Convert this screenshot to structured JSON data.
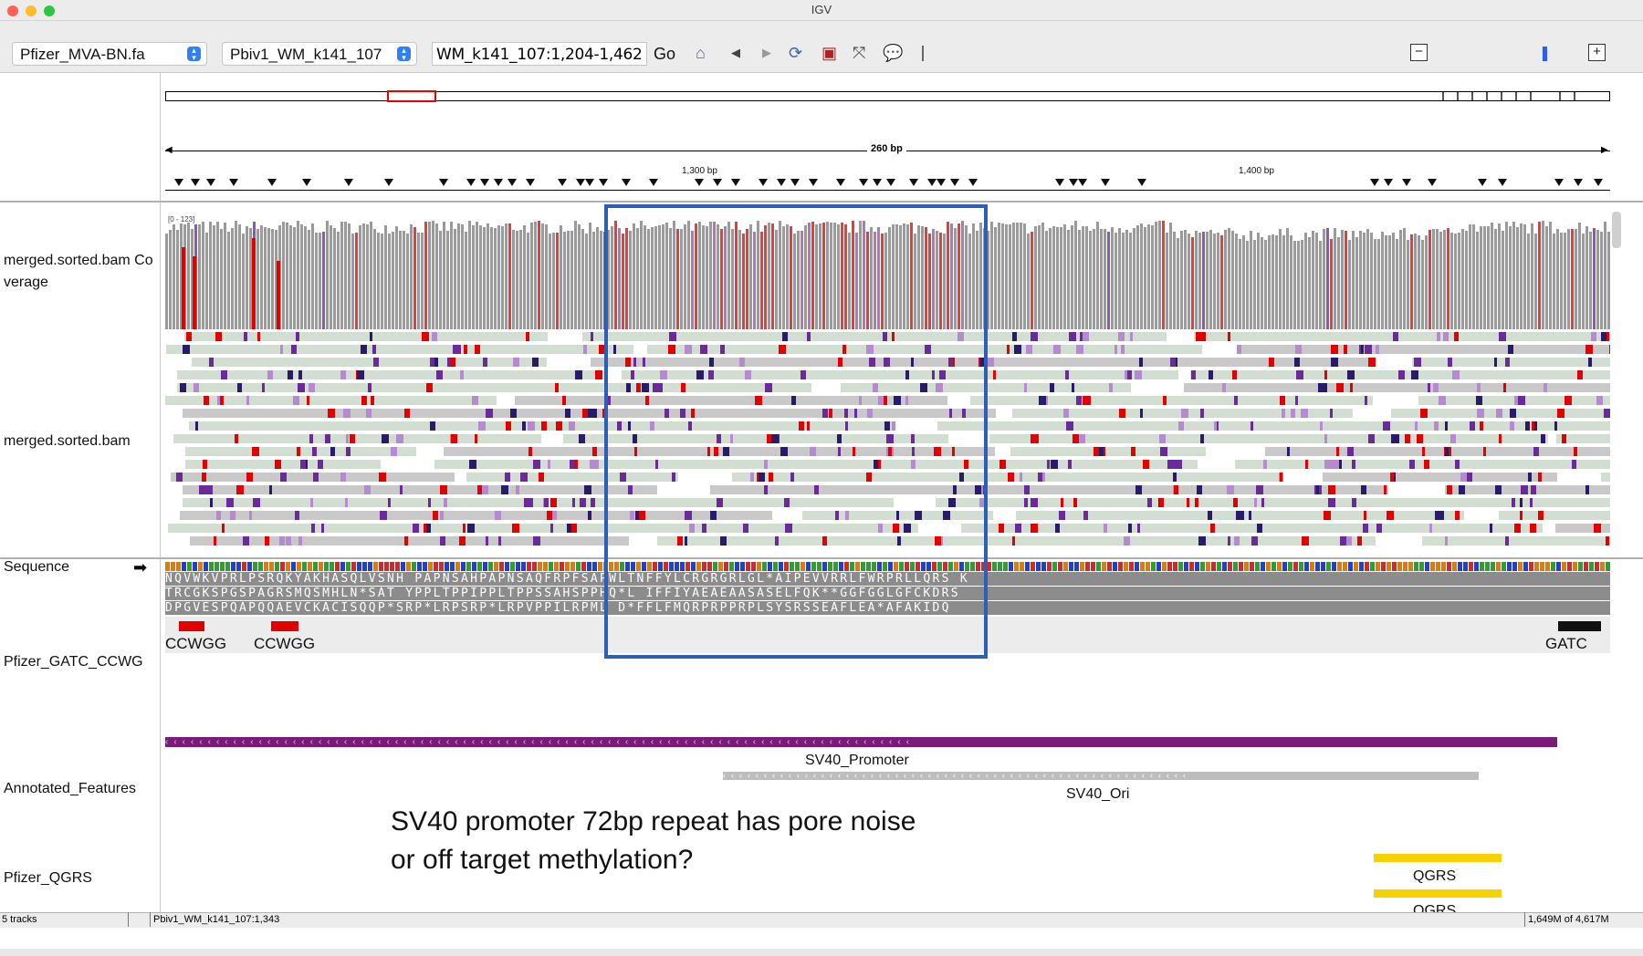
{
  "window": {
    "title": "IGV"
  },
  "toolbar": {
    "genome": "Pfizer_MVA-BN.fa",
    "chromosome": "Pbiv1_WM_k141_107",
    "locus": "WM_k141_107:1,204-1,462",
    "go_label": "Go",
    "icons": [
      "home-icon",
      "back-icon",
      "forward-icon",
      "refresh-icon",
      "roi-icon",
      "fit-icon",
      "popup-icon"
    ]
  },
  "ruler": {
    "span_label": "260 bp",
    "tick_labels": [
      "1,300 bp",
      "1,400 bp"
    ]
  },
  "tracks": {
    "coverage_label": "merged.sorted.bam Co\nverage",
    "coverage_range": "[0 - 123]",
    "bam_label": "merged.sorted.bam",
    "sequence_label": "Sequence",
    "motif_track_label": "Pfizer_GATC_CCWG",
    "features_label": "Annotated_Features",
    "qgrs_track_label": "Pfizer_QGRS"
  },
  "translation": {
    "frame1": "NQVWKVPRLPSRQKYAKHASQLVSNH PAPNSAHPAPNSAQFRPFSAPWLTNFFYLCRGRGRLGL*AIPEVVRRLFWRPRLLQRS K",
    "frame2": "TRCGKSPGSPAGRSMQSMHLN*SAT YPPLTPPIPPLTPPSSAHSPPHQ*L IFFIYAEAEAASASELFQK**GGFGGLGFCKDRS",
    "frame3": "DPGVESPQAPQQAEVCKACISQQP*SRP*LRPSRP*LRPVPPILRPML D*FFLFMQRPRPPRPLSYSRSSEAFLEA*AFAKIDQ"
  },
  "motifs": [
    {
      "label": "CCWGG"
    },
    {
      "label": "CCWGG"
    },
    {
      "label": "GATC"
    }
  ],
  "features": [
    {
      "label": "SV40_Promoter"
    },
    {
      "label": "SV40_Ori"
    }
  ],
  "annotation_note": {
    "line1": "SV40 promoter 72bp repeat has pore noise",
    "line2": "or off target methylation?"
  },
  "qgrs": [
    {
      "label": "QGRS"
    },
    {
      "label": "QGRS"
    }
  ],
  "statusbar": {
    "tracks": "5 tracks",
    "position": "Pbiv1_WM_k141_107:1,343",
    "memory": "1,649M of 4,617M"
  },
  "colors": {
    "mismatch_red": "#e20000",
    "methyl_purple": "#7a1a7a",
    "read_green": "#d3ded3",
    "read_gray": "#c9c9c9",
    "highlight_blue": "#2d5fb8",
    "qgrs_yellow": "#f5d200"
  }
}
